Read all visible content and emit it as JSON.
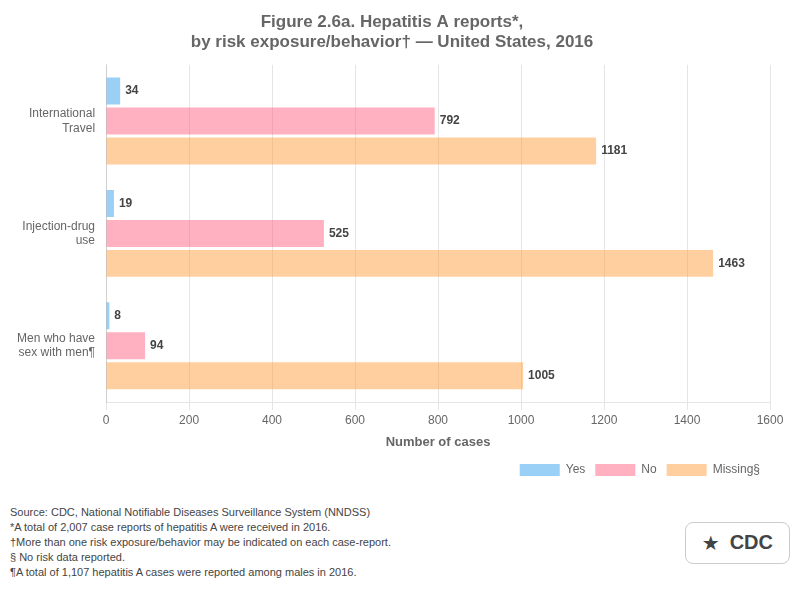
{
  "chart_data": {
    "type": "bar",
    "orientation": "horizontal",
    "title": "Figure 2.6a. Hepatitis A reports*,\nby risk exposure/behavior† — United States, 2016",
    "categories": [
      "International\nTravel",
      "Injection-drug\nuse",
      "Men who have\nsex with men¶"
    ],
    "series": [
      {
        "name": "Yes",
        "values": [
          34,
          19,
          8
        ]
      },
      {
        "name": "No",
        "values": [
          792,
          525,
          94
        ]
      },
      {
        "name": "Missing§",
        "values": [
          1181,
          1463,
          1005
        ]
      }
    ],
    "xlabel": "Number of cases",
    "xlim": [
      0,
      1600
    ],
    "xticks": [
      0,
      200,
      400,
      600,
      800,
      1000,
      1200,
      1400,
      1600
    ],
    "grid": true,
    "legend": "lower right",
    "data_labels": true,
    "annotations": [
      "Source: CDC, National Notifiable Diseases Surveillance System (NNDSS)",
      "*A total of 2,007 case reports of hepatitis A were received in 2016.",
      "†More than one risk exposure/behavior may be indicated on each case-report.",
      "§ No risk data reported.",
      "¶A total of 1,107 hepatitis A cases were reported among males in 2016.",
      "★",
      "CDC"
    ]
  }
}
